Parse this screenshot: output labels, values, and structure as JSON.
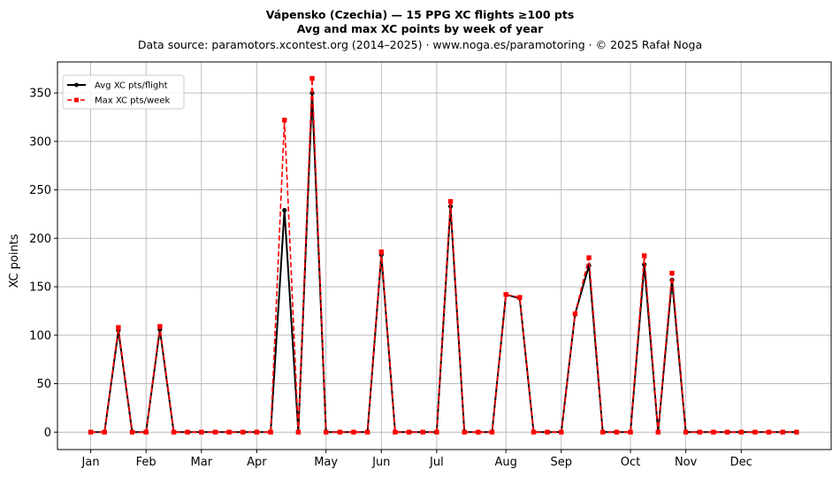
{
  "chart_data": {
    "type": "line",
    "title": "Vápensko (Czechia)  —  15 PPG XC flights ≥100 pts",
    "title2": "Avg and max XC points by week of year",
    "subtitle": "Data source: paramotors.xcontest.org (2014–2025)  ·  www.noga.es/paramotoring  ·  © 2025 Rafał Noga",
    "xlabel": "",
    "ylabel": "XC points",
    "x": [
      1,
      2,
      3,
      4,
      5,
      6,
      7,
      8,
      9,
      10,
      11,
      12,
      13,
      14,
      15,
      16,
      17,
      18,
      19,
      20,
      21,
      22,
      23,
      24,
      25,
      26,
      27,
      28,
      29,
      30,
      31,
      32,
      33,
      34,
      35,
      36,
      37,
      38,
      39,
      40,
      41,
      42,
      43,
      44,
      45,
      46,
      47,
      48,
      49,
      50,
      51,
      52
    ],
    "xlim": [
      -1.4,
      54.5
    ],
    "ylim": [
      -18,
      382
    ],
    "yticks": [
      0,
      50,
      100,
      150,
      200,
      250,
      300,
      350
    ],
    "month_ticks": [
      {
        "label": "Jan",
        "x": 1
      },
      {
        "label": "Feb",
        "x": 5
      },
      {
        "label": "Mar",
        "x": 9
      },
      {
        "label": "Apr",
        "x": 13
      },
      {
        "label": "May",
        "x": 18
      },
      {
        "label": "Jun",
        "x": 22
      },
      {
        "label": "Jul",
        "x": 26
      },
      {
        "label": "Aug",
        "x": 31
      },
      {
        "label": "Sep",
        "x": 35
      },
      {
        "label": "Oct",
        "x": 40
      },
      {
        "label": "Nov",
        "x": 44
      },
      {
        "label": "Dec",
        "x": 48
      }
    ],
    "grid": true,
    "legend_position": "top-left",
    "series": [
      {
        "name": "Avg XC pts/flight",
        "color": "#000000",
        "style": "solid-circle",
        "values": [
          0,
          0,
          105,
          0,
          0,
          106,
          0,
          0,
          0,
          0,
          0,
          0,
          0,
          0,
          229,
          0,
          350,
          0,
          0,
          0,
          0,
          183,
          0,
          0,
          0,
          0,
          233,
          0,
          0,
          0,
          142,
          138,
          0,
          0,
          0,
          122,
          172,
          0,
          0,
          0,
          173,
          0,
          157,
          0,
          0,
          0,
          0,
          0,
          0,
          0,
          0,
          0
        ]
      },
      {
        "name": "Max XC pts/week",
        "color": "#ff0000",
        "style": "dashed-square",
        "values": [
          0,
          0,
          108,
          0,
          0,
          109,
          0,
          0,
          0,
          0,
          0,
          0,
          0,
          0,
          322,
          0,
          365,
          0,
          0,
          0,
          0,
          186,
          0,
          0,
          0,
          0,
          238,
          0,
          0,
          0,
          142,
          139,
          0,
          0,
          0,
          122,
          180,
          0,
          0,
          0,
          182,
          0,
          164,
          0,
          0,
          0,
          0,
          0,
          0,
          0,
          0,
          0
        ]
      }
    ]
  }
}
